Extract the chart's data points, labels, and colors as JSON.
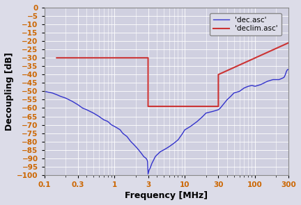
{
  "title": "",
  "xlabel": "Frequency [MHz]",
  "ylabel": "Decoupling [dB]",
  "xlim": [
    0.1,
    300
  ],
  "ylim": [
    -100,
    0
  ],
  "yticks": [
    0,
    -5,
    -10,
    -15,
    -20,
    -25,
    -30,
    -35,
    -40,
    -45,
    -50,
    -55,
    -60,
    -65,
    -70,
    -75,
    -80,
    -85,
    -90,
    -95,
    -100
  ],
  "xticks": [
    0.1,
    0.3,
    1,
    3,
    10,
    30,
    100,
    300
  ],
  "xticklabels": [
    "0.1",
    "0.3",
    "1",
    "3",
    "10",
    "30",
    "100",
    "300"
  ],
  "blue_color": "#3333cc",
  "red_color": "#cc3333",
  "plot_bg_color": "#d0d0e0",
  "fig_bg_color": "#c8c8d8",
  "tick_label_color": "#cc6600",
  "axis_label_color": "#000000",
  "grid_color": "#ffffff",
  "legend_labels": [
    "'dec.asc'",
    "'declim.asc'"
  ],
  "blue_x": [
    0.1,
    0.13,
    0.15,
    0.17,
    0.2,
    0.25,
    0.3,
    0.35,
    0.4,
    0.5,
    0.6,
    0.7,
    0.8,
    0.9,
    1.0,
    1.1,
    1.2,
    1.3,
    1.5,
    1.7,
    1.8,
    2.0,
    2.2,
    2.4,
    2.5,
    2.6,
    2.7,
    2.8,
    2.9,
    2.95,
    3.0,
    3.1,
    3.2,
    3.4,
    3.6,
    3.8,
    4.0,
    4.5,
    5.0,
    5.5,
    6.0,
    7.0,
    8.0,
    9.0,
    10.0,
    12.0,
    15.0,
    18.0,
    20.0,
    25.0,
    30.0,
    32.0,
    35.0,
    40.0,
    45.0,
    50.0,
    60.0,
    70.0,
    80.0,
    90.0,
    100.0,
    120.0,
    150.0,
    180.0,
    200.0,
    220.0,
    250.0,
    260.0,
    270.0,
    280.0,
    290.0,
    300.0
  ],
  "blue_y": [
    -50,
    -51,
    -52,
    -53,
    -54,
    -56,
    -58,
    -60,
    -61,
    -63,
    -65,
    -67,
    -68,
    -70,
    -71,
    -72,
    -73,
    -75,
    -77,
    -80,
    -81,
    -83,
    -85,
    -87,
    -88,
    -89,
    -89.5,
    -90,
    -91,
    -92,
    -99.5,
    -97,
    -96,
    -93,
    -91,
    -89,
    -88,
    -86,
    -85,
    -84,
    -83,
    -81,
    -79,
    -76,
    -73,
    -71,
    -68,
    -65,
    -63,
    -62,
    -61,
    -60,
    -58,
    -55,
    -53,
    -51,
    -50,
    -48,
    -47,
    -46.5,
    -47,
    -46,
    -44,
    -43,
    -43,
    -43,
    -42,
    -41.5,
    -40,
    -38,
    -37,
    -37
  ],
  "red_x": [
    0.15,
    1.5,
    1.5,
    3.0,
    3.0,
    30.0,
    30.0,
    300.0
  ],
  "red_y": [
    -30,
    -30,
    -30,
    -30,
    -59,
    -59,
    -40,
    -21
  ]
}
